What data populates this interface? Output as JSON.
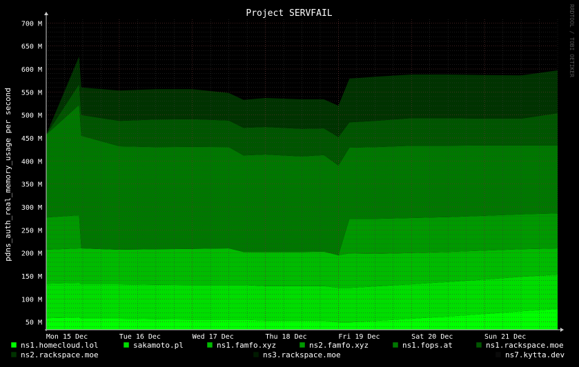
{
  "chart_data": {
    "type": "area",
    "stacked": true,
    "title": "Project SERVFAIL",
    "ylabel": "pdns_auth_real_memory_usage per second",
    "xlabel": "",
    "watermark": "RRDTOOL / TOBI OETIKER",
    "y_ticks": [
      {
        "v": 50,
        "label": "50 M"
      },
      {
        "v": 100,
        "label": "100 M"
      },
      {
        "v": 150,
        "label": "150 M"
      },
      {
        "v": 200,
        "label": "200 M"
      },
      {
        "v": 250,
        "label": "250 M"
      },
      {
        "v": 300,
        "label": "300 M"
      },
      {
        "v": 350,
        "label": "350 M"
      },
      {
        "v": 400,
        "label": "400 M"
      },
      {
        "v": 450,
        "label": "450 M"
      },
      {
        "v": 500,
        "label": "500 M"
      },
      {
        "v": 550,
        "label": "550 M"
      },
      {
        "v": 600,
        "label": "600 M"
      },
      {
        "v": 650,
        "label": "650 M"
      },
      {
        "v": 700,
        "label": "700 M"
      }
    ],
    "ylim": [
      33,
      708
    ],
    "xlim": [
      0,
      7
    ],
    "x_ticks": [
      {
        "v": 0,
        "label": "Mon 15 Dec"
      },
      {
        "v": 1,
        "label": "Tue 16 Dec"
      },
      {
        "v": 2,
        "label": "Wed 17 Dec"
      },
      {
        "v": 3,
        "label": "Thu 18 Dec"
      },
      {
        "v": 4,
        "label": "Fri 19 Dec"
      },
      {
        "v": 5,
        "label": "Sat 20 Dec"
      },
      {
        "v": 6,
        "label": "Sun 21 Dec"
      }
    ],
    "x": [
      0,
      0.45,
      0.48,
      1.0,
      1.5,
      2.0,
      2.5,
      2.7,
      3.0,
      3.5,
      3.8,
      4.0,
      4.15,
      4.5,
      5.0,
      5.5,
      6.0,
      6.5,
      7.0
    ],
    "series": [
      {
        "name": "ns1.homecloud.lol",
        "color": "#00ff00",
        "values": [
          58,
          60,
          57,
          57,
          56,
          55,
          55,
          55,
          53,
          53,
          53,
          49,
          49,
          52,
          57,
          62,
          67,
          73,
          78
        ]
      },
      {
        "name": "sakamoto.pl",
        "color": "#00dd00",
        "values": [
          75,
          75,
          75,
          75,
          75,
          75,
          75,
          75,
          75,
          75,
          75,
          75,
          75,
          75,
          75,
          75,
          75,
          75,
          75
        ]
      },
      {
        "name": "ns1.famfo.xyz",
        "color": "#00bb00",
        "values": [
          74,
          75,
          78,
          75,
          77,
          79,
          80,
          72,
          74,
          74,
          75,
          71,
          75,
          71,
          68,
          65,
          63,
          60,
          57
        ]
      },
      {
        "name": "ns2.famfo.xyz",
        "color": "#009900",
        "values": [
          70,
          72,
          0,
          0,
          0,
          0,
          0,
          0,
          0,
          0,
          0,
          0,
          75,
          76,
          76,
          76,
          76,
          76,
          76
        ]
      },
      {
        "name": "ns1.fops.at",
        "color": "#007700",
        "values": [
          180,
          240,
          245,
          225,
          222,
          222,
          220,
          210,
          212,
          208,
          210,
          195,
          155,
          156,
          157,
          155,
          153,
          150,
          148
        ]
      },
      {
        "name": "ns1.rackspace.moe",
        "color": "#005500",
        "values": [
          0,
          45,
          45,
          55,
          60,
          60,
          58,
          60,
          60,
          60,
          58,
          62,
          55,
          57,
          60,
          60,
          58,
          58,
          70
        ]
      },
      {
        "name": "ns2.rackspace.moe",
        "color": "#003300",
        "values": [
          0,
          60,
          60,
          66,
          66,
          65,
          60,
          61,
          63,
          64,
          63,
          68,
          95,
          96,
          95,
          95,
          95,
          94,
          93
        ]
      },
      {
        "name": "ns3.rackspace.moe",
        "color": "#001a00",
        "values": [
          0,
          0,
          0,
          0,
          0,
          0,
          0,
          0,
          0,
          0,
          0,
          0,
          0,
          0,
          0,
          0,
          0,
          0,
          0
        ]
      },
      {
        "name": "ns7.kytta.dev",
        "color": "#0a0a0a",
        "values": [
          0,
          0,
          0,
          0,
          0,
          0,
          0,
          0,
          0,
          0,
          0,
          0,
          0,
          0,
          0,
          0,
          0,
          0,
          0
        ]
      }
    ]
  }
}
